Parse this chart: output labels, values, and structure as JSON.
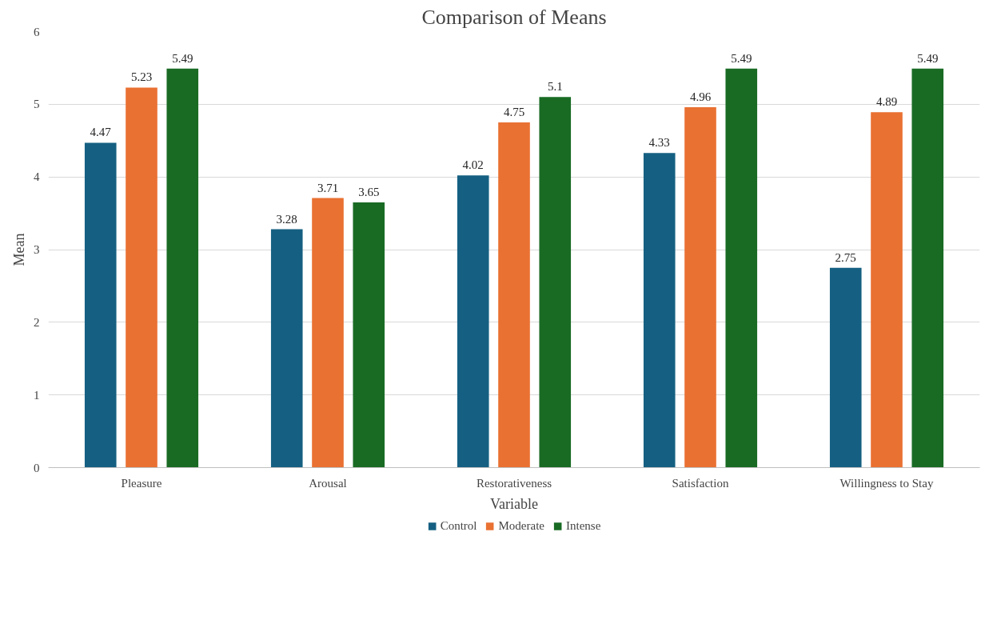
{
  "chart_data": {
    "type": "bar",
    "title": "Comparison of Means",
    "xlabel": "Variable",
    "ylabel": "Mean",
    "categories": [
      "Pleasure",
      "Arousal",
      "Restorativeness",
      "Satisfaction",
      "Willingness to Stay"
    ],
    "series": [
      {
        "name": "Control",
        "color": "#156082",
        "values": [
          4.47,
          3.28,
          4.02,
          4.33,
          2.75
        ]
      },
      {
        "name": "Moderate",
        "color": "#e97132",
        "values": [
          5.23,
          3.71,
          4.75,
          4.96,
          4.89
        ]
      },
      {
        "name": "Intense",
        "color": "#196b24",
        "values": [
          5.49,
          3.65,
          5.1,
          5.49,
          5.49
        ]
      }
    ],
    "ylim": [
      0,
      6
    ],
    "yticks": [
      0,
      1,
      2,
      3,
      4,
      5,
      6
    ],
    "grid": "y",
    "legend": "bottom",
    "data_labels": true
  }
}
